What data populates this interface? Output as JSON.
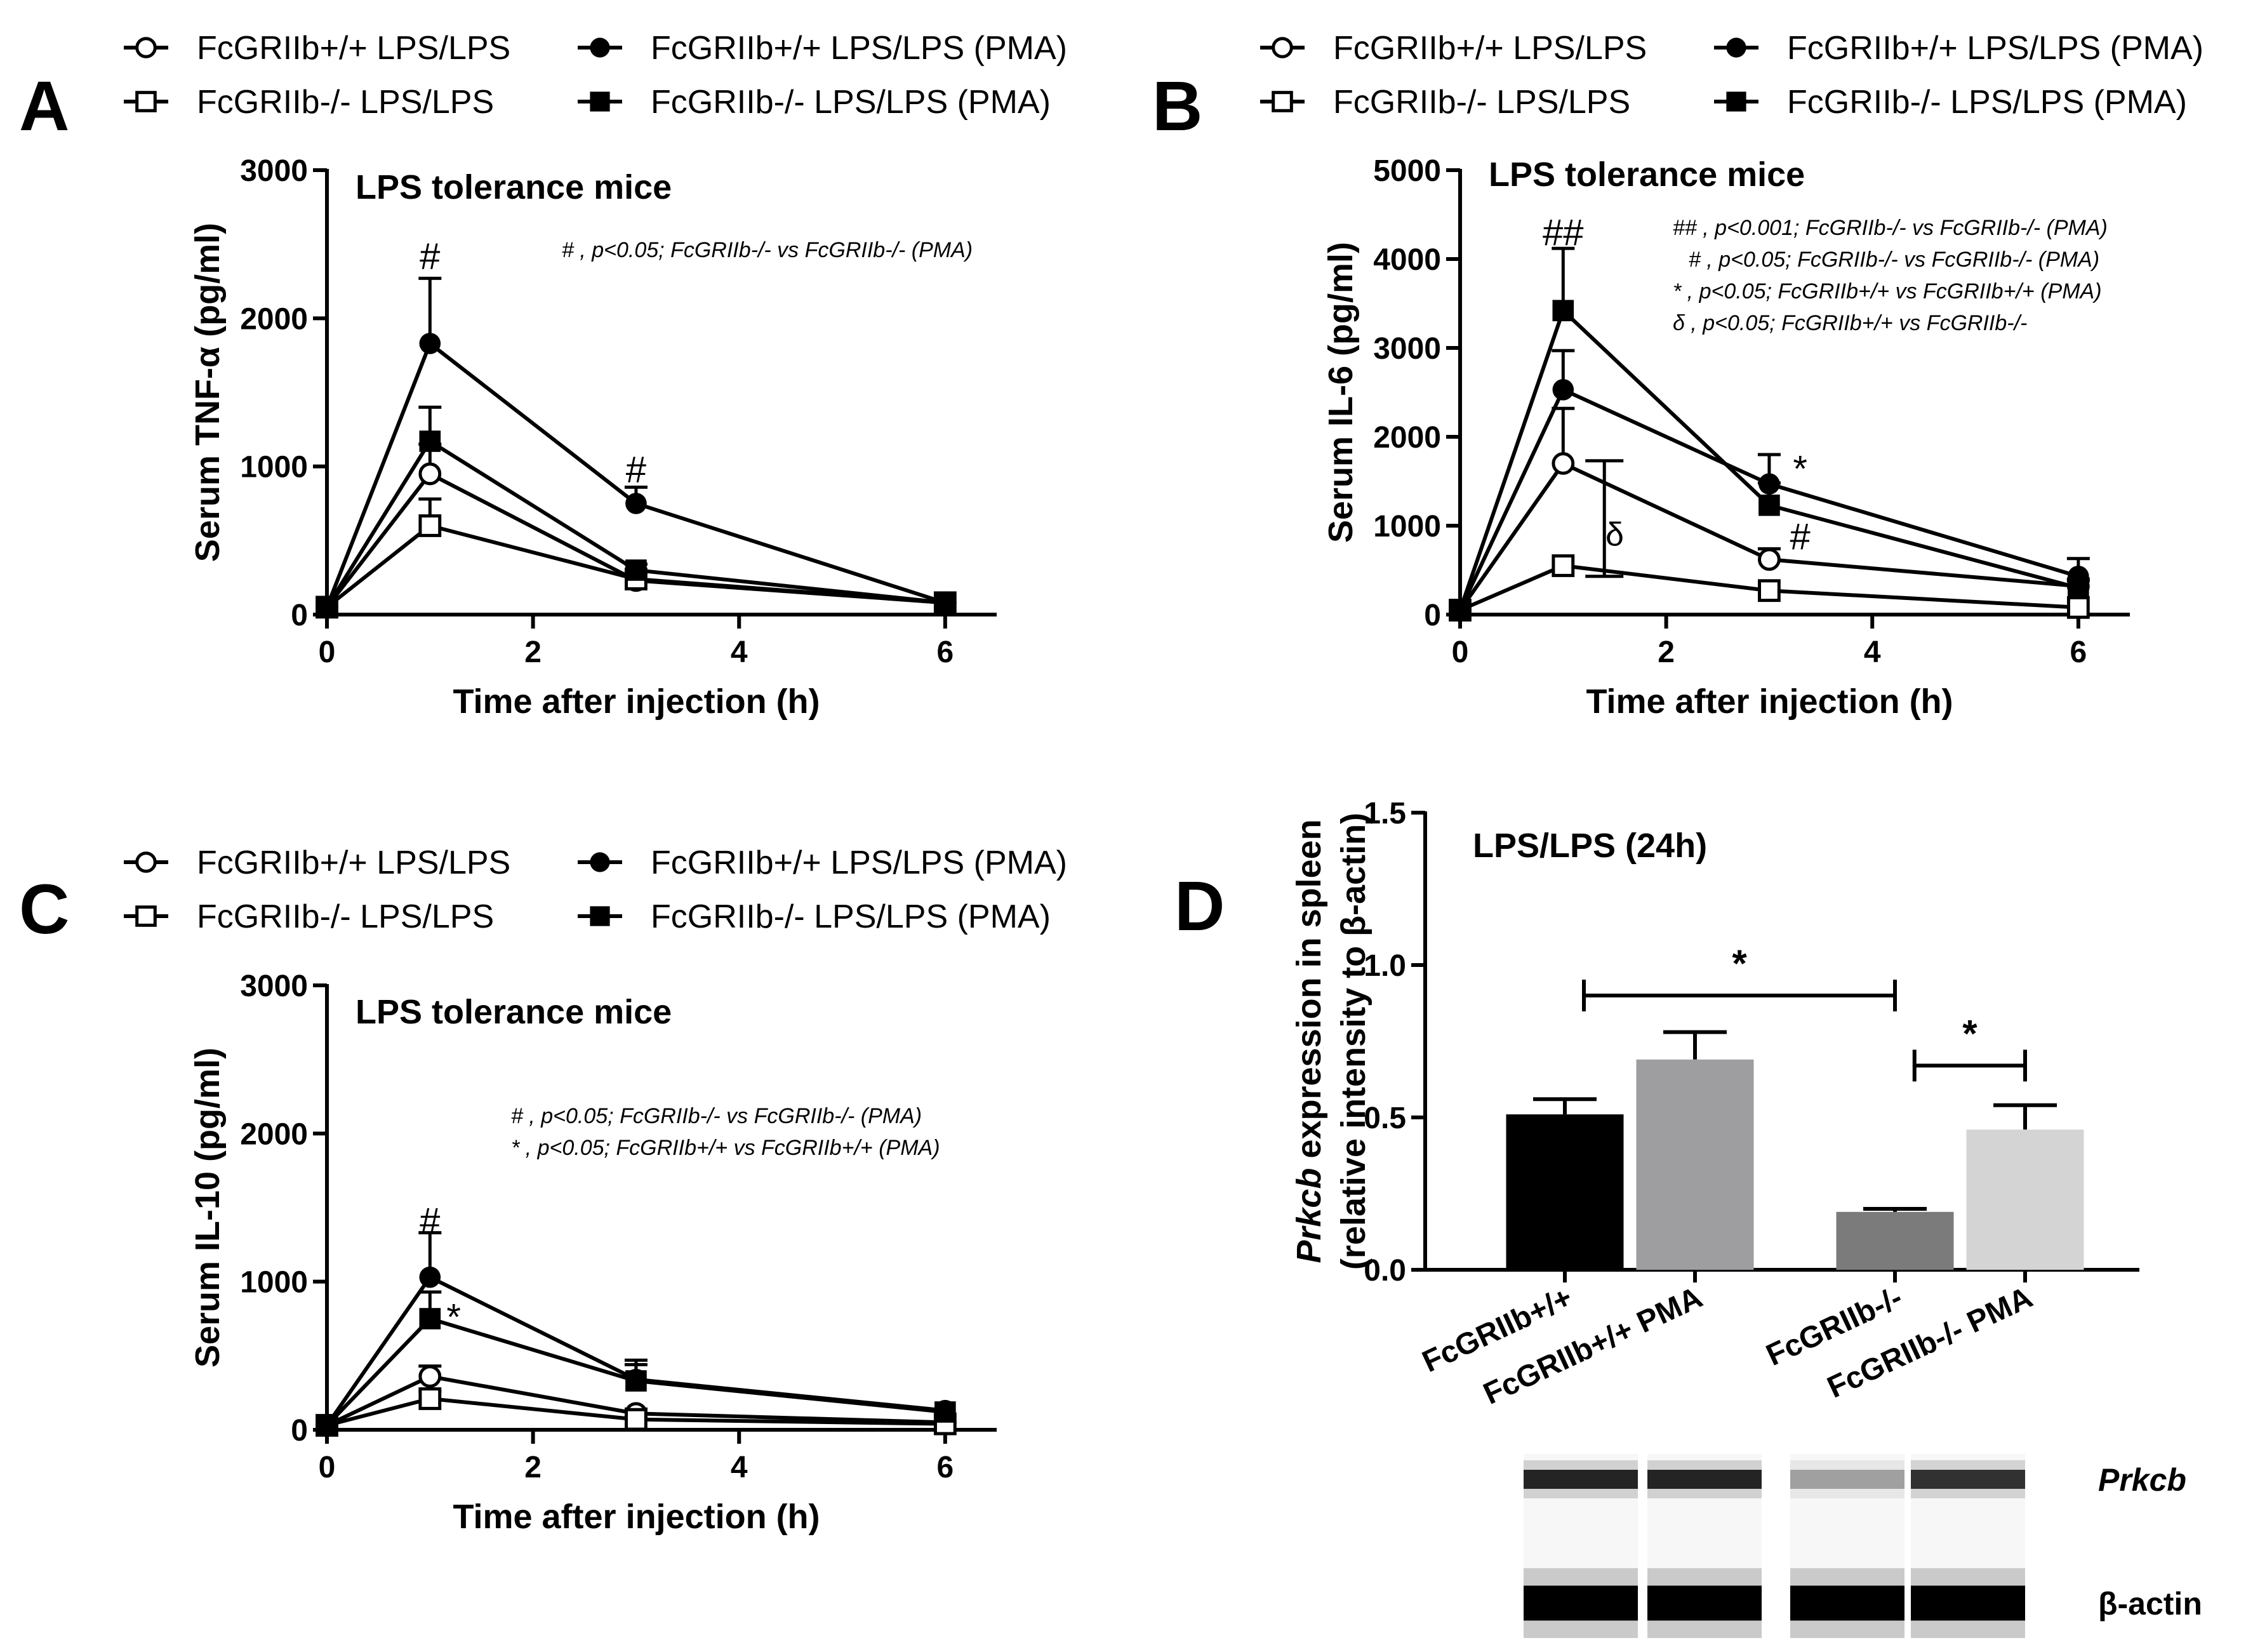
{
  "figure": {
    "panel_labels": [
      "A",
      "B",
      "C",
      "D"
    ]
  },
  "legend": {
    "items": [
      {
        "label": "FcGRIIb+/+ LPS/LPS",
        "marker": "open-circle"
      },
      {
        "label": "FcGRIIb+/+ LPS/LPS (PMA)",
        "marker": "filled-circle"
      },
      {
        "label": "FcGRIIb-/- LPS/LPS",
        "marker": "open-square"
      },
      {
        "label": "FcGRIIb-/- LPS/LPS (PMA)",
        "marker": "filled-square"
      }
    ]
  },
  "chart_data": [
    {
      "panel": "A",
      "type": "line",
      "title": "LPS tolerance mice",
      "xlabel": "Time after injection (h)",
      "ylabel": "Serum TNF-α (pg/ml)",
      "xlim": [
        0,
        6.5
      ],
      "ylim": [
        0,
        3000
      ],
      "xticks": [
        0,
        2,
        4,
        6
      ],
      "yticks": [
        0,
        1000,
        2000,
        3000
      ],
      "x": [
        0,
        1,
        3,
        6
      ],
      "series": [
        {
          "name": "FcGRIIb+/+ LPS/LPS",
          "marker": "open-circle",
          "values": [
            50,
            950,
            230,
            80
          ],
          "errors": [
            0,
            200,
            60,
            0
          ]
        },
        {
          "name": "FcGRIIb+/+ LPS/LPS (PMA)",
          "marker": "filled-circle",
          "values": [
            50,
            1830,
            750,
            80
          ],
          "errors": [
            0,
            440,
            110,
            0
          ]
        },
        {
          "name": "FcGRIIb-/- LPS/LPS",
          "marker": "open-square",
          "values": [
            50,
            600,
            240,
            80
          ],
          "errors": [
            0,
            180,
            40,
            0
          ]
        },
        {
          "name": "FcGRIIb-/- LPS/LPS (PMA)",
          "marker": "filled-square",
          "values": [
            50,
            1170,
            300,
            80
          ],
          "errors": [
            0,
            230,
            40,
            0
          ]
        }
      ],
      "annotations": [
        {
          "text": "#",
          "x": 1,
          "y": 2420
        },
        {
          "text": "#",
          "x": 3,
          "y": 980
        }
      ],
      "note_lines": [
        "# , p<0.05; FcGRIIb-/- vs FcGRIIb-/- (PMA)"
      ]
    },
    {
      "panel": "B",
      "type": "line",
      "title": "LPS tolerance mice",
      "xlabel": "Time after injection (h)",
      "ylabel": "Serum IL-6 (pg/ml)",
      "xlim": [
        0,
        6.5
      ],
      "ylim": [
        0,
        5000
      ],
      "xticks": [
        0,
        2,
        4,
        6
      ],
      "yticks": [
        0,
        1000,
        2000,
        3000,
        4000,
        5000
      ],
      "x": [
        0,
        1,
        3,
        6
      ],
      "series": [
        {
          "name": "FcGRIIb+/+ LPS/LPS",
          "marker": "open-circle",
          "values": [
            50,
            1700,
            620,
            320
          ],
          "errors": [
            0,
            620,
            120,
            80
          ]
        },
        {
          "name": "FcGRIIb+/+ LPS/LPS (PMA)",
          "marker": "filled-circle",
          "values": [
            50,
            2530,
            1470,
            430
          ],
          "errors": [
            0,
            440,
            330,
            200
          ]
        },
        {
          "name": "FcGRIIb-/- LPS/LPS",
          "marker": "open-square",
          "values": [
            50,
            550,
            270,
            80
          ],
          "errors": [
            0,
            0,
            0,
            0
          ]
        },
        {
          "name": "FcGRIIb-/- LPS/LPS (PMA)",
          "marker": "filled-square",
          "values": [
            50,
            3420,
            1230,
            300
          ],
          "errors": [
            0,
            700,
            250,
            80
          ]
        }
      ],
      "annotations": [
        {
          "text": "##",
          "x": 1,
          "y": 4300
        },
        {
          "text": "*",
          "x": 3.3,
          "y": 1640
        },
        {
          "text": "#",
          "x": 3.3,
          "y": 880
        },
        {
          "text": "δ",
          "x": 1.5,
          "y": 920
        }
      ],
      "bracket": {
        "x": 1.4,
        "from": 430,
        "to": 1730
      },
      "note_lines": [
        "## , p<0.001; FcGRIIb-/- vs FcGRIIb-/- (PMA)",
        "# , p<0.05; FcGRIIb-/- vs FcGRIIb-/- (PMA)",
        "* , p<0.05; FcGRIIb+/+ vs FcGRIIb+/+ (PMA)",
        "δ , p<0.05; FcGRIIb+/+ vs FcGRIIb-/-"
      ]
    },
    {
      "panel": "C",
      "type": "line",
      "title": "LPS tolerance mice",
      "xlabel": "Time after injection (h)",
      "ylabel": "Serum IL-10 (pg/ml)",
      "xlim": [
        0,
        6.5
      ],
      "ylim": [
        0,
        3000
      ],
      "xticks": [
        0,
        2,
        4,
        6
      ],
      "yticks": [
        0,
        1000,
        2000,
        3000
      ],
      "x": [
        0,
        1,
        3,
        6
      ],
      "series": [
        {
          "name": "FcGRIIb+/+ LPS/LPS",
          "marker": "open-circle",
          "values": [
            30,
            360,
            110,
            50
          ],
          "errors": [
            0,
            70,
            30,
            0
          ]
        },
        {
          "name": "FcGRIIb+/+ LPS/LPS (PMA)",
          "marker": "filled-circle",
          "values": [
            30,
            1030,
            340,
            130
          ],
          "errors": [
            0,
            300,
            130,
            0
          ]
        },
        {
          "name": "FcGRIIb-/- LPS/LPS",
          "marker": "open-square",
          "values": [
            30,
            210,
            70,
            40
          ],
          "errors": [
            0,
            50,
            20,
            0
          ]
        },
        {
          "name": "FcGRIIb-/- LPS/LPS (PMA)",
          "marker": "filled-square",
          "values": [
            30,
            750,
            330,
            120
          ],
          "errors": [
            0,
            180,
            110,
            0
          ]
        }
      ],
      "annotations": [
        {
          "text": "#",
          "x": 1,
          "y": 1410
        },
        {
          "text": "*",
          "x": 1.23,
          "y": 760
        }
      ],
      "note_lines": [
        "# , p<0.05; FcGRIIb-/- vs FcGRIIb-/- (PMA)",
        "* , p<0.05; FcGRIIb+/+ vs FcGRIIb+/+ (PMA)"
      ]
    },
    {
      "panel": "D",
      "type": "bar",
      "title": "LPS/LPS (24h)",
      "ylabel_italic": "Prkcb",
      "ylabel_rest": " expression in spleen",
      "ylabel_line2": "(relative intensity to β-actin)",
      "ylim": [
        0,
        1.5
      ],
      "yticks": [
        "0.0",
        "0.5",
        "1.0",
        "1.5"
      ],
      "categories": [
        "FcGRIIb+/+",
        "FcGRIIb+/+ PMA",
        "FcGRIIb-/-",
        "FcGRIIb-/- PMA"
      ],
      "values": [
        0.51,
        0.69,
        0.19,
        0.46
      ],
      "errors": [
        0.05,
        0.09,
        0.01,
        0.08
      ],
      "colors": [
        "#000000",
        "#9e9ea0",
        "#7b7b7b",
        "#d4d4d4"
      ],
      "significance": [
        {
          "from": 0,
          "to": 2,
          "y": 0.9,
          "label": "*"
        },
        {
          "from": 2.15,
          "to": 3,
          "y": 0.67,
          "label": "*"
        }
      ],
      "blot": {
        "lanes": 4,
        "rows": [
          {
            "label": "Prkcb",
            "italic": true,
            "intensities": [
              0.85,
              0.85,
              0.35,
              0.8
            ]
          },
          {
            "label": "β-actin",
            "italic": false,
            "intensities": [
              1.0,
              1.0,
              1.0,
              1.0
            ]
          }
        ]
      }
    }
  ]
}
